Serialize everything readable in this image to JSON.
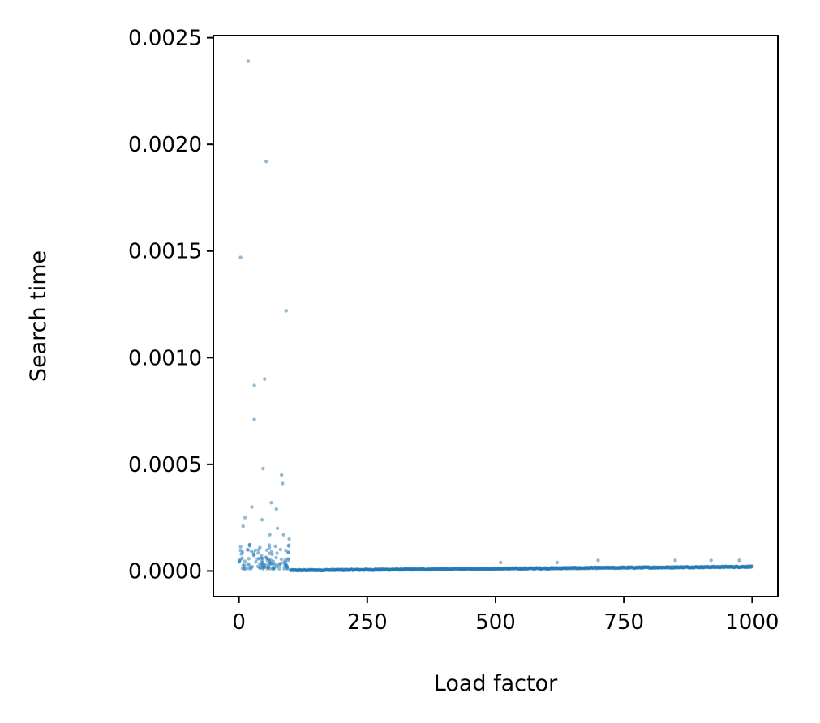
{
  "chart_data": {
    "type": "scatter",
    "title": "",
    "xlabel": "Load factor",
    "ylabel": "Search time",
    "xlim": [
      -50,
      1050
    ],
    "ylim": [
      -0.00012,
      0.00251
    ],
    "x_ticks": [
      0,
      250,
      500,
      750,
      1000
    ],
    "x_tick_labels": [
      "0",
      "250",
      "500",
      "750",
      "1000"
    ],
    "y_ticks": [
      0.0,
      0.0005,
      0.001,
      0.0015,
      0.002,
      0.0025
    ],
    "y_tick_labels": [
      "0.0000",
      "0.0005",
      "0.0010",
      "0.0015",
      "0.0020",
      "0.0025"
    ],
    "grid": false,
    "marker_color": "#1f77b4",
    "marker_alpha": 0.5,
    "series": [
      {
        "name": "",
        "notable_points": [
          {
            "x": 18,
            "y": 0.00239
          },
          {
            "x": 53,
            "y": 0.00192
          },
          {
            "x": 3,
            "y": 0.00147
          },
          {
            "x": 92,
            "y": 0.00122
          },
          {
            "x": 50,
            "y": 0.0009
          },
          {
            "x": 30,
            "y": 0.00087
          },
          {
            "x": 30,
            "y": 0.00071
          },
          {
            "x": 47,
            "y": 0.00048
          },
          {
            "x": 83,
            "y": 0.00045
          },
          {
            "x": 85,
            "y": 0.00041
          },
          {
            "x": 63,
            "y": 0.00032
          },
          {
            "x": 25,
            "y": 0.0003
          },
          {
            "x": 73,
            "y": 0.00029
          },
          {
            "x": 12,
            "y": 0.00025
          },
          {
            "x": 8,
            "y": 0.00021
          },
          {
            "x": 45,
            "y": 0.00024
          },
          {
            "x": 60,
            "y": 0.00017
          },
          {
            "x": 75,
            "y": 0.0002
          },
          {
            "x": 87,
            "y": 0.00017
          },
          {
            "x": 98,
            "y": 0.00015
          },
          {
            "x": 510,
            "y": 4e-05
          },
          {
            "x": 620,
            "y": 4e-05
          },
          {
            "x": 700,
            "y": 5e-05
          },
          {
            "x": 850,
            "y": 5e-05
          },
          {
            "x": 920,
            "y": 5e-05
          },
          {
            "x": 975,
            "y": 5e-05
          }
        ],
        "low_load_cluster": {
          "x_range": [
            0,
            100
          ],
          "y_range": [
            1e-05,
            0.00013
          ],
          "count": 110
        },
        "baseline": {
          "x_range": [
            100,
            1000
          ],
          "y_start": 3e-06,
          "y_end": 2e-05,
          "jitter": 6e-06,
          "count": 900
        }
      }
    ]
  }
}
